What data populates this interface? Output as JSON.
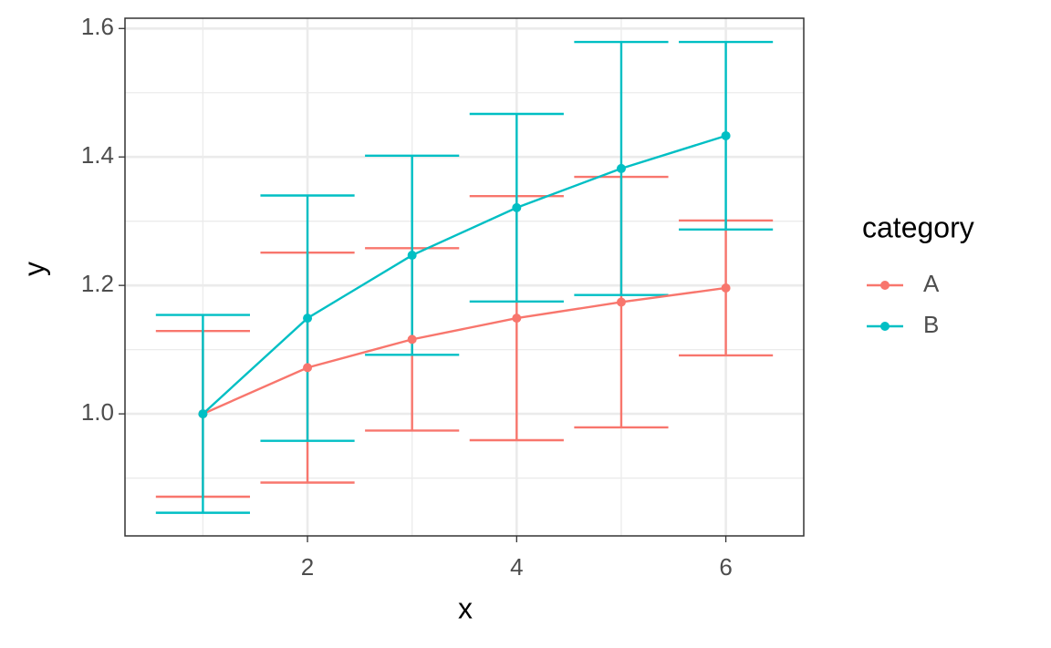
{
  "chart_data": {
    "type": "line_errorbar",
    "x_label": "x",
    "y_label": "y",
    "x": [
      1,
      2,
      3,
      4,
      5,
      6
    ],
    "series": [
      {
        "name": "A",
        "color": "#F8766D",
        "values": [
          1.0,
          1.072,
          1.116,
          1.149,
          1.174,
          1.196
        ],
        "errors": [
          0.129,
          0.179,
          0.142,
          0.19,
          0.195,
          0.105
        ]
      },
      {
        "name": "B",
        "color": "#00BFC4",
        "values": [
          1.0,
          1.149,
          1.247,
          1.321,
          1.382,
          1.433
        ],
        "errors": [
          0.154,
          0.191,
          0.155,
          0.146,
          0.197,
          0.146
        ]
      }
    ],
    "errorbar_width": 0.9,
    "xlim": [
      0.255,
      6.745
    ],
    "ylim": [
      0.81,
      1.616
    ],
    "xticks": [
      2,
      4,
      6
    ],
    "yticks": [
      {
        "value": 1.0,
        "label": "1.0"
      },
      {
        "value": 1.2,
        "label": "1.2"
      },
      {
        "value": 1.4,
        "label": "1.4"
      },
      {
        "value": 1.6,
        "label": "1.6"
      }
    ],
    "x_minor_ticks": [
      1,
      3,
      5
    ],
    "y_minor_ticks": [
      0.9,
      1.1,
      1.3,
      1.5
    ],
    "grid": true,
    "legend_title": "category",
    "legend_position": "right"
  }
}
